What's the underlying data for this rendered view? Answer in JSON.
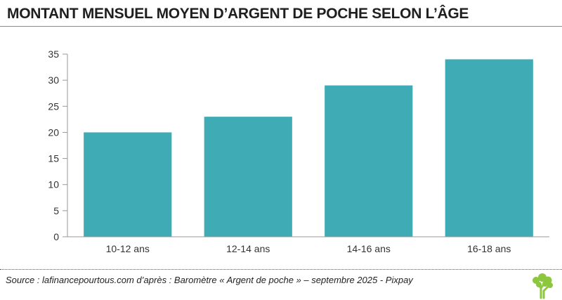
{
  "header": {
    "title": "MONTANT MENSUEL MOYEN D’ARGENT DE POCHE SELON L’ÂGE"
  },
  "chart_data": {
    "type": "bar",
    "categories": [
      "10-12 ans",
      "12-14 ans",
      "14-16 ans",
      "16-18 ans"
    ],
    "values": [
      20,
      23,
      29,
      34
    ],
    "ylim": [
      0,
      35
    ],
    "yticks": [
      0,
      5,
      10,
      15,
      20,
      25,
      30,
      35
    ],
    "grid": false,
    "colors": {
      "bar": "#3fabb5",
      "axis": "#999999"
    }
  },
  "footer": {
    "source": "Source : lafinancepourtous.com d’après : Baromètre « Argent de poche » – septembre 2025 - Pixpay",
    "logo_icon": "tree-logo-icon",
    "logo_color": "#8dc63f"
  }
}
